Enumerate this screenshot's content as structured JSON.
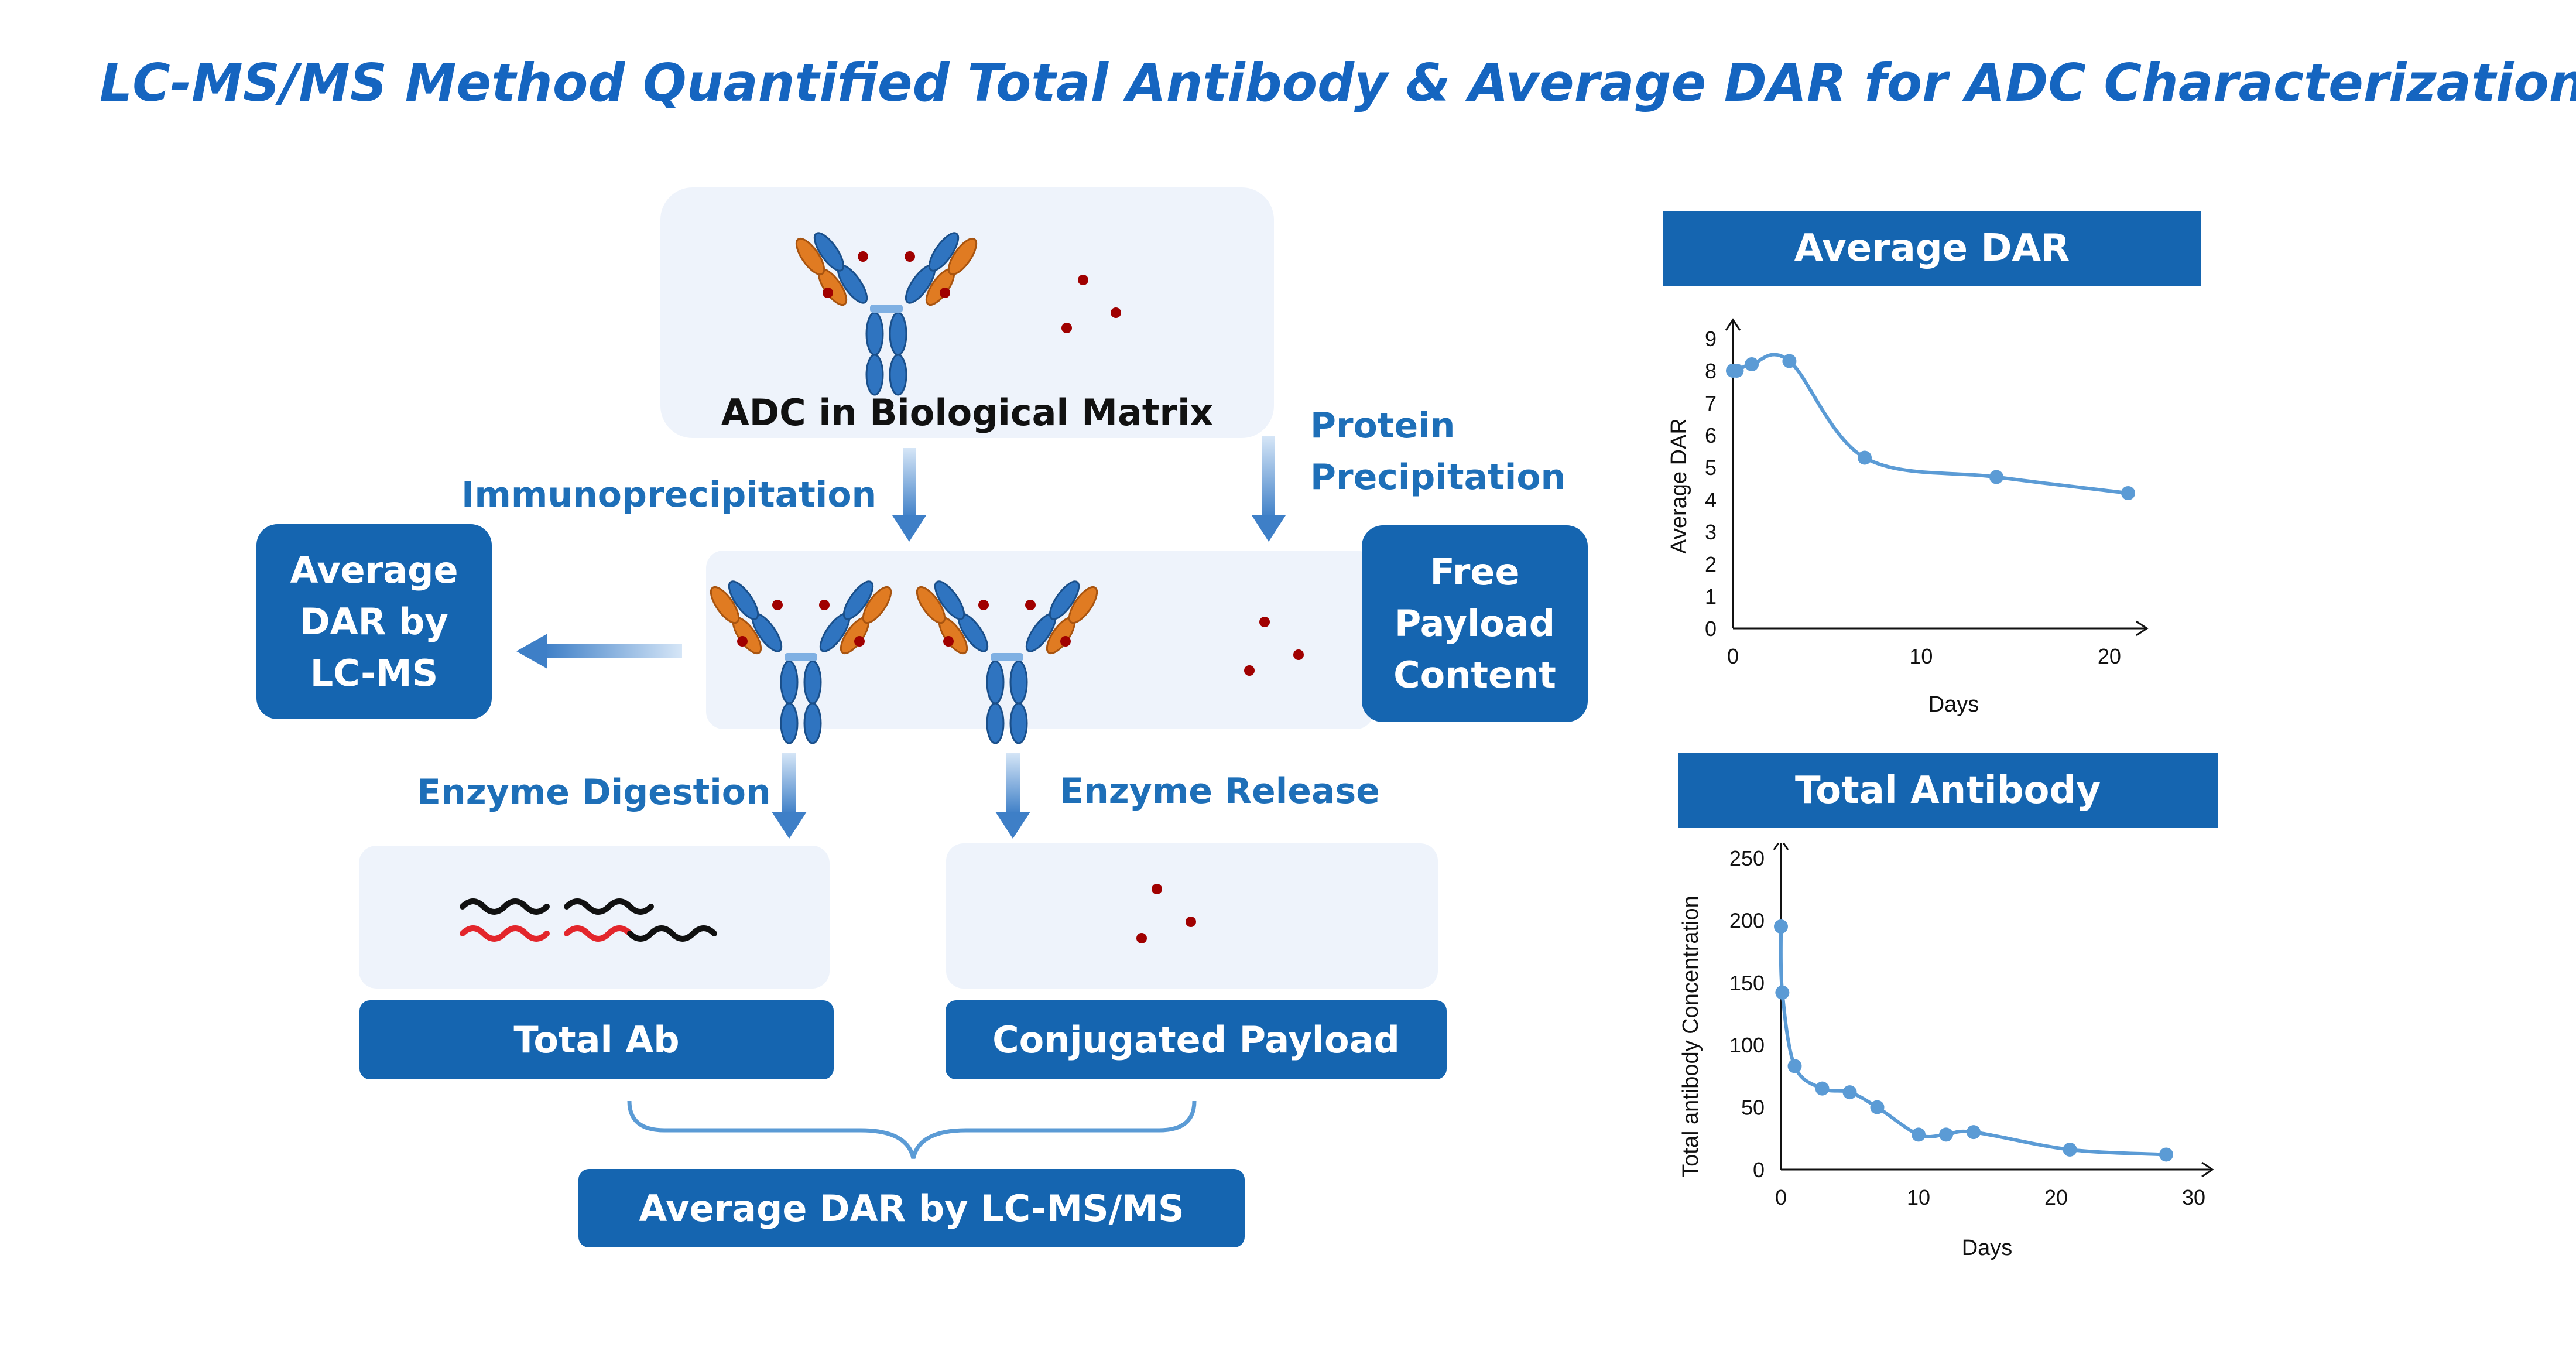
{
  "title": "LC-MS/MS Method Quantified Total Antibody & Average DAR for ADC Characterization",
  "diagram": {
    "matrix_caption": "ADC in Biological Matrix",
    "immunoprecipitation": "Immunoprecipitation",
    "protein_precipitation": [
      "Protein",
      "Precipitation"
    ],
    "avg_dar_lcms": [
      "Average",
      "DAR by",
      "LC-MS"
    ],
    "free_payload": [
      "Free",
      "Payload",
      "Content"
    ],
    "enzyme_digestion": "Enzyme Digestion",
    "enzyme_release": "Enzyme Release",
    "total_ab": "Total Ab",
    "conjugated_payload": "Conjugated Payload",
    "avg_dar_lcmsms": "Average DAR by LC-MS/MS"
  },
  "colors": {
    "title": "#1565C0",
    "box": "#1565B0",
    "panel": "#EEF3FB",
    "arrow": "#4A8BD0",
    "antibody_blue": "#2F74C0",
    "antibody_orange": "#E07B22",
    "payload_dot": "#A00000",
    "chart_line": "#5B9BD5"
  },
  "chart_data": [
    {
      "type": "line",
      "title": "Average DAR",
      "xlabel": "Days",
      "ylabel": "Average DAR",
      "xlim": [
        0,
        21
      ],
      "ylim": [
        0,
        9
      ],
      "xticks": [
        0,
        10,
        20
      ],
      "yticks": [
        0,
        1,
        2,
        3,
        4,
        5,
        6,
        7,
        8,
        9
      ],
      "x": [
        0,
        0.2,
        1,
        3,
        7,
        14,
        21
      ],
      "y": [
        8.0,
        8.0,
        8.2,
        8.3,
        5.3,
        4.7,
        4.2
      ]
    },
    {
      "type": "line",
      "title": "Total Antibody",
      "xlabel": "Days",
      "ylabel": "Total antibody Concentration",
      "xlim": [
        0,
        30
      ],
      "ylim": [
        0,
        250
      ],
      "xticks": [
        0,
        10,
        20,
        30
      ],
      "yticks": [
        0,
        50,
        100,
        150,
        200,
        250
      ],
      "x": [
        0,
        0.1,
        1,
        3,
        5,
        7,
        10,
        12,
        14,
        21,
        28
      ],
      "y": [
        195,
        142,
        83,
        65,
        62,
        50,
        28,
        28,
        30,
        16,
        12
      ]
    }
  ]
}
